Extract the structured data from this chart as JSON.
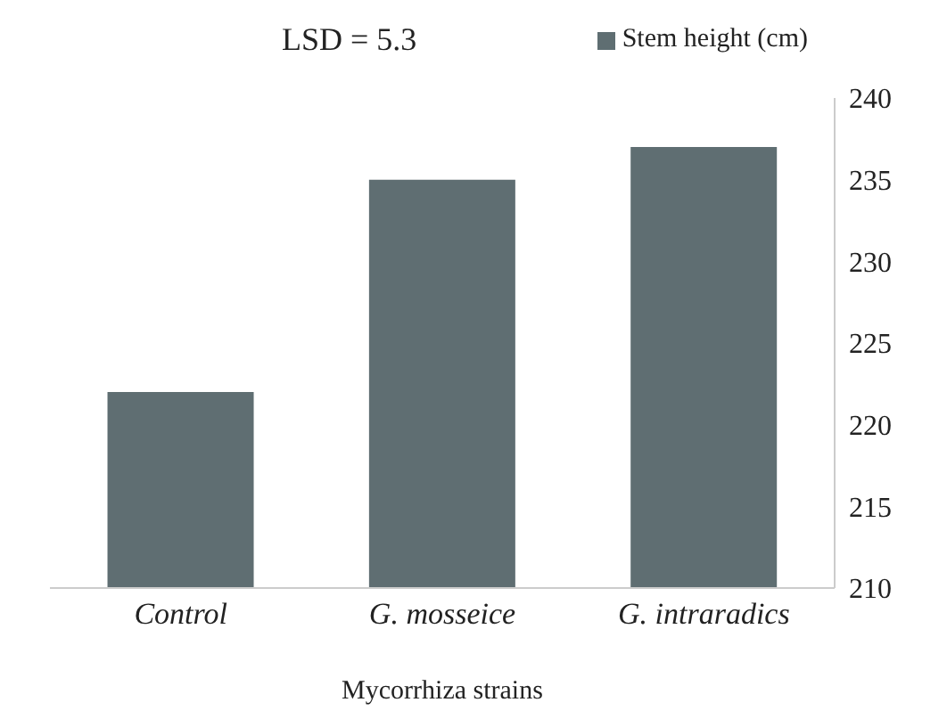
{
  "chart_data": {
    "type": "bar",
    "xlabel": "Mycorrhiza strains",
    "categories": [
      "Control",
      "G. mosseice",
      "G. intraradics"
    ],
    "series": [
      {
        "name": "Stem height (cm)",
        "color": "#5f6e72",
        "values": [
          222,
          235,
          237
        ]
      }
    ],
    "ylim": [
      210,
      240
    ],
    "yticks": [
      210,
      215,
      220,
      225,
      230,
      235,
      240
    ],
    "grid": false,
    "legend": "top right",
    "annotations": [
      "LSD = 5.3"
    ]
  }
}
